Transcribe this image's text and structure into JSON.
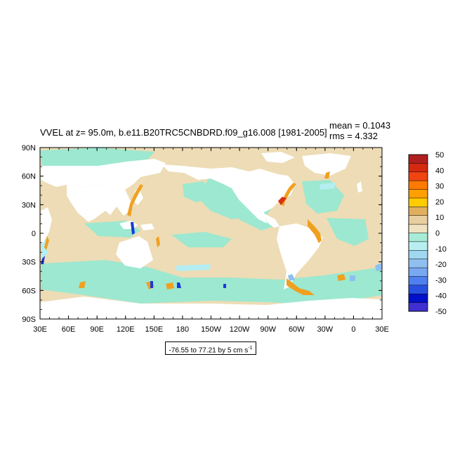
{
  "title": "VVEL at z=  95.0m, b.e11.B20TRC5CNBDRD.f09_g16.008 [1981-2005]",
  "stats": {
    "mean": "mean = 0.1043",
    "rms": "rms = 4.332"
  },
  "range_label": "-76.55 to 77.21 by 5 cm s",
  "range_label_sup": "-1",
  "map": {
    "projection": "cylindrical-equidistant",
    "center_lon": 210,
    "lon_ticks": [
      "30E",
      "60E",
      "90E",
      "120E",
      "150E",
      "180",
      "150W",
      "120W",
      "90W",
      "60W",
      "30W",
      "0",
      "30E"
    ],
    "lat_ticks": [
      "90N",
      "60N",
      "30N",
      "0",
      "30S",
      "60S",
      "90S"
    ],
    "land_color": "#ffffff",
    "ocean_base_color": "#e9d8b3"
  },
  "colorbar": {
    "labels": [
      "50",
      "40",
      "30",
      "20",
      "10",
      "0",
      "-10",
      "-20",
      "-30",
      "-40",
      "-50"
    ],
    "colors": [
      "#b01f1f",
      "#d42a12",
      "#f04412",
      "#ff7a00",
      "#ffa000",
      "#ffcc00",
      "#e0b060",
      "#e8cfa0",
      "#f0e2c0",
      "#a8ecd8",
      "#b8eef0",
      "#a0d8f0",
      "#90c0f0",
      "#78a8f0",
      "#5080f0",
      "#2850e0",
      "#0010c8",
      "#4030d0"
    ]
  },
  "colors": {
    "sand": "#eddcb5",
    "mint": "#9de8d0",
    "cyan": "#b5eef2",
    "blue_light": "#8cc0f0",
    "orange": "#f0a020",
    "red": "#d83010",
    "blue_dark": "#1a3ad8"
  }
}
